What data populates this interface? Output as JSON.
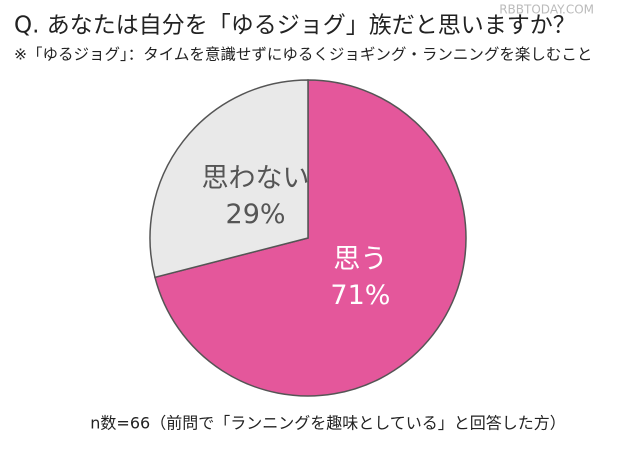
{
  "chart_data": {
    "type": "pie",
    "title": "Q. あなたは自分を「ゆるジョグ」族だと思いますか？",
    "subtitle": "※「ゆるジョグ」：タイムを意識せずにゆるくジョギング・ランニングを楽しむこと",
    "note": "n数=66（前問で「ランニングを趣味としている」と回答した方）",
    "watermark": "RBBTODAY.COM",
    "categories": [
      "思う",
      "思わない"
    ],
    "values": [
      71,
      29
    ],
    "value_labels": [
      "71%",
      "29%"
    ],
    "colors": [
      "#e4579b",
      "#e9e9e9"
    ]
  }
}
